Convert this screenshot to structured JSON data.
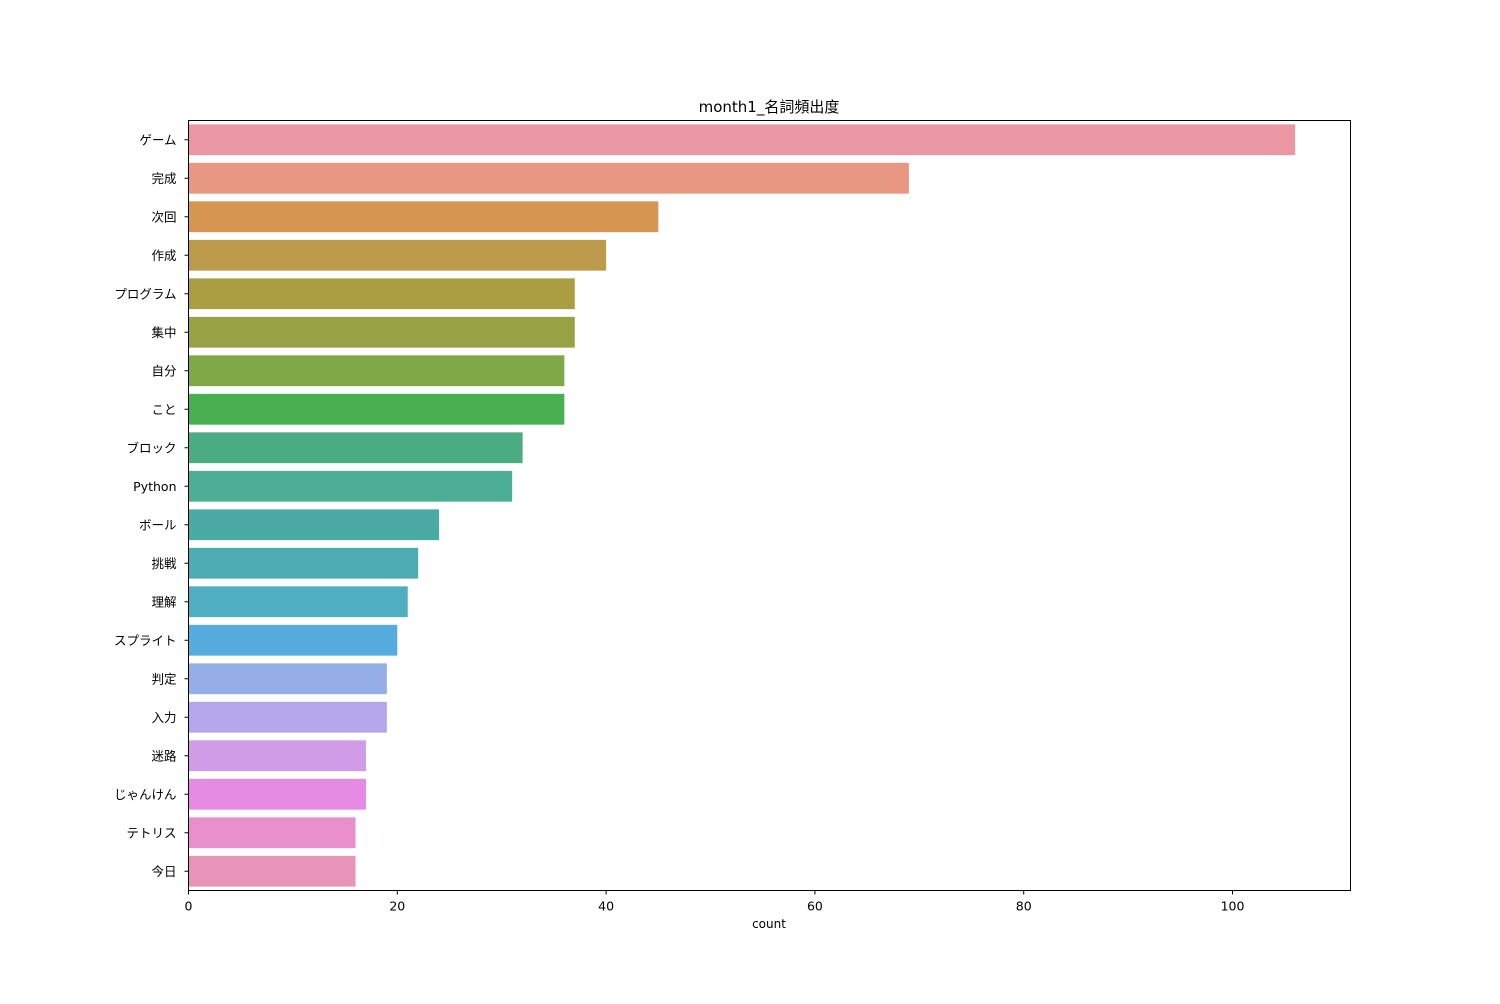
{
  "chart_data": {
    "type": "bar",
    "orientation": "horizontal",
    "title": "month1_名詞頻出度",
    "xlabel": "count",
    "ylabel": "",
    "xlim": [
      0,
      111.3
    ],
    "xticks": [
      0,
      20,
      40,
      60,
      80,
      100
    ],
    "grid": false,
    "categories": [
      "ゲーム",
      "完成",
      "次回",
      "作成",
      "プログラム",
      "集中",
      "自分",
      "こと",
      "ブロック",
      "Python",
      "ボール",
      "挑戦",
      "理解",
      "スプライト",
      "判定",
      "入力",
      "迷路",
      "じゃんけん",
      "テトリス",
      "今日"
    ],
    "values": [
      106,
      69,
      45,
      40,
      37,
      37,
      36,
      36,
      32,
      31,
      24,
      22,
      21,
      20,
      19,
      19,
      17,
      17,
      16,
      16
    ],
    "colors": [
      "#ea96a3",
      "#e89783",
      "#d69550",
      "#bd9a4b",
      "#aa9e43",
      "#98a244",
      "#80a846",
      "#48b051",
      "#4bac84",
      "#4bae95",
      "#4caaa5",
      "#4eadb3",
      "#50aec3",
      "#56acdd",
      "#96aee7",
      "#b6a6eb",
      "#d09ce8",
      "#e68be3",
      "#e98fcb",
      "#e893b8"
    ]
  }
}
